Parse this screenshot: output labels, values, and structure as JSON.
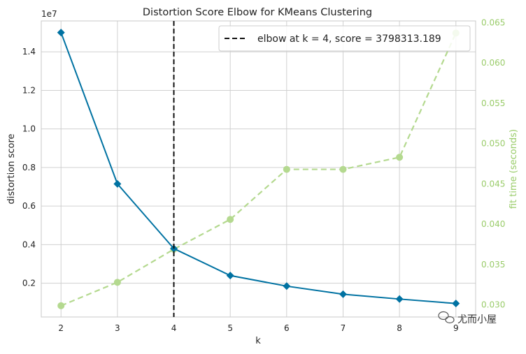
{
  "chart_data": {
    "type": "line",
    "title": "Distortion Score Elbow for KMeans Clustering",
    "xlabel": "k",
    "ylabel": "distortion score",
    "y_offset_text": "1e7",
    "y2label": "fit time (seconds)",
    "x": [
      2,
      3,
      4,
      5,
      6,
      7,
      8,
      9
    ],
    "xlim": [
      1.65,
      9.35
    ],
    "ylim": [
      250000,
      15600000
    ],
    "y2lim": [
      0.0285,
      0.0652
    ],
    "y_ticks": [
      2000000,
      4000000,
      6000000,
      8000000,
      10000000,
      12000000,
      14000000
    ],
    "y_tick_labels": [
      "0.2",
      "0.4",
      "0.6",
      "0.8",
      "1.0",
      "1.2",
      "1.4"
    ],
    "y2_ticks": [
      0.03,
      0.035,
      0.04,
      0.045,
      0.05,
      0.055,
      0.06,
      0.065
    ],
    "y2_tick_labels": [
      "0.030",
      "0.035",
      "0.040",
      "0.045",
      "0.050",
      "0.055",
      "0.060",
      "0.065"
    ],
    "series": [
      {
        "axis": "left",
        "values": [
          15000000,
          7150000,
          3798313.189,
          2400000,
          1850000,
          1430000,
          1180000,
          950000
        ],
        "color": "#0072a2"
      },
      {
        "axis": "right",
        "values": [
          0.0299,
          0.0328,
          0.0369,
          0.0406,
          0.0468,
          0.0468,
          0.0483,
          0.0637
        ],
        "color": "#b4d98f"
      }
    ],
    "elbow": {
      "k": 4,
      "legend_label": "elbow at k = 4, score = 3798313.189"
    },
    "grid": true,
    "legend_position": "top-right"
  },
  "watermark": {
    "text": "尤而小屋"
  },
  "colors": {
    "distortion": "#0072a2",
    "fit_time": "#b4d98f",
    "fit_time_axis": "#9acc6a",
    "elbow": "#111111",
    "grid": "#d0d0d0"
  }
}
